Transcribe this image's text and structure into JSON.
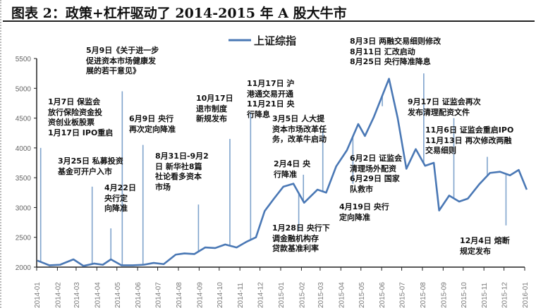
{
  "chart_data": {
    "type": "line",
    "title": "图表 2：政策+杠杆驱动了 2014-2015 年 A 股大牛市",
    "legend": {
      "label": "上证综指",
      "placement": "top-center"
    },
    "color": "#4a78b5",
    "ylim": [
      2000,
      5500
    ],
    "yticks": [
      2000,
      2500,
      3000,
      3500,
      4000,
      4500,
      5000,
      5500
    ],
    "xticks": [
      "2014-01",
      "2014-02",
      "2014-03",
      "2014-04",
      "2014-05",
      "2014-06",
      "2014-07",
      "2014-08",
      "2014-09",
      "2014-10",
      "2014-11",
      "2014-12",
      "2015-01",
      "2015-02",
      "2015-03",
      "2015-04",
      "2015-05",
      "2015-06",
      "2015-07",
      "2015-08",
      "2015-09",
      "2015-10",
      "2015-11",
      "2015-12",
      "2016-01"
    ],
    "grid": false,
    "series": [
      {
        "name": "上证综指",
        "x": [
          "2014-01-02",
          "2014-01-20",
          "2014-02-05",
          "2014-02-25",
          "2014-03-12",
          "2014-03-28",
          "2014-04-10",
          "2014-04-22",
          "2014-05-08",
          "2014-05-25",
          "2014-06-10",
          "2014-06-25",
          "2014-07-10",
          "2014-07-28",
          "2014-08-10",
          "2014-08-25",
          "2014-09-10",
          "2014-09-25",
          "2014-10-10",
          "2014-10-27",
          "2014-11-10",
          "2014-11-25",
          "2014-12-08",
          "2014-12-22",
          "2015-01-05",
          "2015-01-20",
          "2015-02-05",
          "2015-02-25",
          "2015-03-10",
          "2015-03-25",
          "2015-04-10",
          "2015-04-27",
          "2015-05-07",
          "2015-05-20",
          "2015-06-01",
          "2015-06-12",
          "2015-06-25",
          "2015-07-08",
          "2015-07-22",
          "2015-08-05",
          "2015-08-18",
          "2015-08-26",
          "2015-09-10",
          "2015-09-25",
          "2015-10-08",
          "2015-10-25",
          "2015-11-10",
          "2015-11-25",
          "2015-12-10",
          "2015-12-23",
          "2016-01-04"
        ],
        "y": [
          2110,
          2030,
          2040,
          2130,
          2020,
          2060,
          2040,
          2130,
          2030,
          2030,
          2040,
          2070,
          2050,
          2210,
          2230,
          2220,
          2330,
          2320,
          2380,
          2330,
          2420,
          2500,
          2940,
          3150,
          3350,
          3400,
          3080,
          3300,
          3250,
          3690,
          3960,
          4400,
          4200,
          4510,
          4850,
          5160,
          4500,
          3650,
          3980,
          3700,
          3750,
          2950,
          3200,
          3100,
          3150,
          3390,
          3580,
          3600,
          3540,
          3630,
          3300
        ]
      }
    ],
    "annotations": [
      {
        "date": "2014-01-07",
        "value": 4000,
        "text": "1月7日 保监会\n放行保险资金投\n资创业板股票\n1月17日 IPO重启"
      },
      {
        "date": "2014-03-25",
        "value": 3350,
        "text": "3月25日 私募投资\n基金可开户入市"
      },
      {
        "date": "2014-04-22",
        "value": 2650,
        "text": "4月22日\n央行定\n向降准"
      },
      {
        "date": "2014-05-09",
        "value": 4950,
        "text": "5月9日《关于进一步\n促进资本市场健康发\n展的若干意见》"
      },
      {
        "date": "2014-06-09",
        "value": 4050,
        "text": "6月9日 央行\n再次定向降准"
      },
      {
        "date": "2014-08-31",
        "value": 3050,
        "text": "8月31日-9月2\n日 新华社8篇\n社论看多资本\n市场"
      },
      {
        "date": "2014-10-17",
        "value": 4150,
        "text": "10月17日\n退市制度\n新规发布"
      },
      {
        "date": "2014-11-17",
        "value": 4600,
        "text": "11月17日 沪\n港通交易开通\n11月21日 央\n行降息"
      },
      {
        "date": "2015-01-28",
        "value": 2620,
        "text": "1月28日 央行下\n调金融机构存\n贷款基准利率"
      },
      {
        "date": "2015-02-04",
        "value": 3550,
        "text": "2月4日 央\n行降准"
      },
      {
        "date": "2015-03-05",
        "value": 4300,
        "text": "3月5日 人大提\n资本市场改革任\n务，改革牛启动"
      },
      {
        "date": "2015-04-19",
        "value": 3400,
        "text": "4月19日 央行\n定向降准"
      },
      {
        "date": "2015-06-02",
        "value": 4700,
        "text": "6月2日 证监会\n清理场外配资\n6月29日 国家\n队救市"
      },
      {
        "date": "2015-08-03",
        "value": 5250,
        "text": "8月3日 两融交易细则修改\n8月11日 汇改启动\n8月25日 央行降准降息"
      },
      {
        "date": "2015-09-17",
        "value": 4500,
        "text": "9月17日 证监会再次\n发布清理配资文件"
      },
      {
        "date": "2015-11-06",
        "value": 3850,
        "text": "11月6日 证监会重启IPO\n11月13日 再次修改两融\n交易细则"
      },
      {
        "date": "2015-12-04",
        "value": 2700,
        "text": "12月4日 熔断\n规定发布"
      }
    ]
  }
}
